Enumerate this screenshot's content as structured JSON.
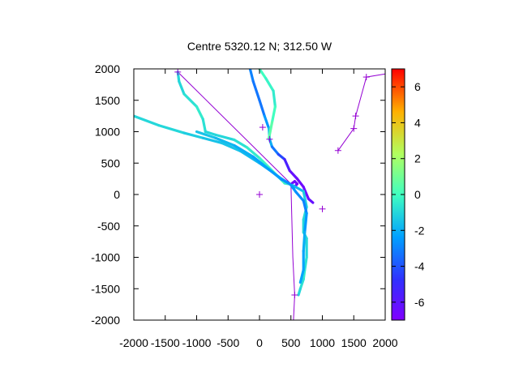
{
  "chart_data": {
    "type": "scatter",
    "title": "Centre 5320.12 N; 312.50  W",
    "xlabel": "",
    "ylabel": "",
    "xlim": [
      -2000,
      2000
    ],
    "ylim": [
      -2000,
      2000
    ],
    "xticks": [
      "-2000",
      "-1500",
      "-1000",
      "-500",
      "0",
      "500",
      "1000",
      "1500",
      "2000"
    ],
    "yticks": [
      "2000",
      "1500",
      "1000",
      "500",
      "0",
      "-500",
      "-1000",
      "-1500",
      "-2000"
    ],
    "colorbar": {
      "range": [
        -7,
        7
      ],
      "ticks": [
        "6",
        "4",
        "2",
        "0",
        "-2",
        "-4",
        "-6"
      ],
      "palette": "rainbow"
    },
    "grid": false,
    "series": [
      {
        "kind": "track",
        "points": [
          [
            -1300,
            1950
          ],
          [
            -1280,
            1800
          ],
          [
            -1200,
            1600
          ],
          [
            -1000,
            1400
          ],
          [
            -900,
            1200
          ],
          [
            -860,
            1000
          ],
          [
            -700,
            950
          ],
          [
            -400,
            870
          ],
          [
            -200,
            750
          ],
          [
            0,
            580
          ],
          [
            200,
            380
          ],
          [
            400,
            180
          ],
          [
            500,
            160
          ]
        ],
        "colors": [
          -1,
          -1,
          -1,
          -0.5,
          -0.5,
          -1,
          -1,
          -1,
          -0.5,
          -0.5,
          0,
          0,
          -1
        ]
      },
      {
        "kind": "track",
        "points": [
          [
            -2000,
            1250
          ],
          [
            -1600,
            1100
          ],
          [
            -1200,
            980
          ],
          [
            -900,
            900
          ],
          [
            -600,
            820
          ],
          [
            -300,
            690
          ],
          [
            0,
            500
          ],
          [
            200,
            360
          ],
          [
            350,
            250
          ],
          [
            480,
            170
          ]
        ],
        "colors": [
          -1,
          -1,
          -1,
          -1.5,
          -1.5,
          -1.5,
          -2,
          -2,
          -2,
          -3
        ]
      },
      {
        "kind": "track",
        "points": [
          [
            -1000,
            1000
          ],
          [
            -700,
            900
          ],
          [
            -400,
            780
          ],
          [
            -100,
            600
          ],
          [
            150,
            400
          ],
          [
            350,
            240
          ],
          [
            500,
            160
          ]
        ],
        "colors": [
          -1.5,
          -1.5,
          -2,
          -2,
          -2.5,
          -2.5,
          -3
        ]
      },
      {
        "kind": "track",
        "points": [
          [
            -150,
            2000
          ],
          [
            -100,
            1800
          ],
          [
            0,
            1500
          ],
          [
            80,
            1250
          ],
          [
            150,
            1050
          ],
          [
            160,
            880
          ],
          [
            200,
            760
          ],
          [
            300,
            640
          ],
          [
            400,
            560
          ],
          [
            480,
            380
          ],
          [
            600,
            250
          ],
          [
            700,
            120
          ],
          [
            780,
            -70
          ],
          [
            850,
            -130
          ]
        ],
        "colors": [
          -3,
          -3,
          -3.5,
          -3,
          -2,
          -1,
          -3,
          -3.5,
          -5,
          -6,
          -6.5,
          -6.5,
          -6.5,
          -6
        ]
      },
      {
        "kind": "track",
        "points": [
          [
            0,
            2000
          ],
          [
            100,
            1850
          ],
          [
            220,
            1650
          ],
          [
            250,
            1400
          ],
          [
            200,
            1150
          ],
          [
            150,
            900
          ]
        ],
        "colors": [
          0,
          0,
          -0.5,
          -0.5,
          0.5,
          0.5
        ]
      },
      {
        "kind": "track",
        "points": [
          [
            500,
            150
          ],
          [
            560,
            120
          ],
          [
            600,
            170
          ],
          [
            560,
            210
          ],
          [
            520,
            180
          ]
        ],
        "colors": [
          -6.5,
          -6.5,
          -6.5,
          -6.5,
          -6.5
        ]
      },
      {
        "kind": "track",
        "points": [
          [
            520,
            150
          ],
          [
            700,
            50
          ],
          [
            750,
            -200
          ],
          [
            700,
            -400
          ],
          [
            700,
            -600
          ],
          [
            750,
            -700
          ],
          [
            750,
            -1000
          ],
          [
            720,
            -1200
          ],
          [
            700,
            -1350
          ],
          [
            650,
            -1500
          ],
          [
            620,
            -1600
          ]
        ],
        "colors": [
          -2,
          -1.5,
          -1,
          -1,
          -1,
          -1,
          -1,
          -0.5,
          -0.5,
          -1,
          -1
        ]
      },
      {
        "kind": "track",
        "points": [
          [
            500,
            150
          ],
          [
            580,
            40
          ],
          [
            700,
            -100
          ],
          [
            750,
            -300
          ],
          [
            720,
            -600
          ],
          [
            700,
            -900
          ],
          [
            700,
            -1200
          ],
          [
            650,
            -1400
          ]
        ],
        "colors": [
          -2.5,
          -2.5,
          -3,
          -3,
          -2,
          -2,
          -2.5,
          -2
        ]
      }
    ],
    "lines": [
      {
        "points": [
          [
            -1300,
            1950
          ],
          [
            520,
            150
          ]
        ]
      },
      {
        "points": [
          [
            500,
            150
          ],
          [
            530,
            -1000
          ],
          [
            560,
            -1600
          ],
          [
            540,
            -2000
          ]
        ]
      },
      {
        "points": [
          [
            1250,
            700
          ],
          [
            1500,
            1050
          ],
          [
            1530,
            1250
          ],
          [
            1700,
            1870
          ],
          [
            2000,
            1920
          ]
        ]
      }
    ],
    "markers": [
      [
        -1300,
        1950
      ],
      [
        50,
        1070
      ],
      [
        160,
        880
      ],
      [
        0,
        0
      ],
      [
        1000,
        -230
      ],
      [
        560,
        -1600
      ],
      [
        1250,
        700
      ],
      [
        1500,
        1050
      ],
      [
        1530,
        1250
      ],
      [
        1700,
        1870
      ]
    ]
  }
}
